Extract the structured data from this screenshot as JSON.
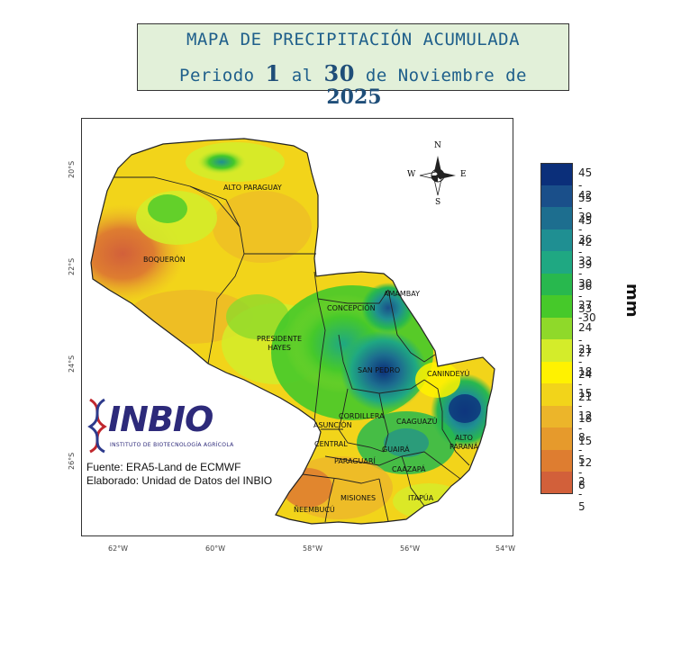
{
  "title": {
    "line1": "MAPA DE PRECIPITACIÓN ACUMULADA",
    "line2_prefix": "Periodo",
    "day_start": "1",
    "line2_mid": "al",
    "day_end": "30",
    "line2_suffix": "de Noviembre de",
    "year": "2025"
  },
  "compass": {
    "n": "N",
    "s": "S",
    "e": "E",
    "w": "W"
  },
  "lat_ticks": [
    "20°S",
    "22°S",
    "24°S",
    "26°S"
  ],
  "lon_ticks": [
    "62°W",
    "60°W",
    "58°W",
    "56°W",
    "54°W"
  ],
  "regions": {
    "alto_paraguay": "ALTO PARAGUAY",
    "boqueron": "BOQUERÓN",
    "presidente_hayes_1": "PRESIDENTE",
    "presidente_hayes_2": "HAYES",
    "concepcion": "CONCEPCIÓN",
    "amambay": "AMAMBAY",
    "san_pedro": "SAN PEDRO",
    "canindeyu": "CANINDEYÚ",
    "cordillera": "CORDILLERA",
    "asuncion": "ASUNCIÓN",
    "central": "CENTRAL",
    "caaguazu": "CAAGUAZÚ",
    "alto_parana_1": "ALTO",
    "alto_parana_2": "PARANÁ",
    "guaira": "GUAIRÁ",
    "paraguari": "PARAGUARÍ",
    "caazapa": "CAAZAPÁ",
    "misiones": "MISIONES",
    "neembucu": "ÑEEMBUCÚ",
    "itapua": "ITAPÚA"
  },
  "legend": {
    "unit": "mm",
    "classes": [
      {
        "label": "45 - 55",
        "color": "#0b2f7a"
      },
      {
        "label": "42 - 45",
        "color": "#1a4f8a"
      },
      {
        "label": "39 - 42",
        "color": "#1d6e8f"
      },
      {
        "label": "36 - 39",
        "color": "#1f8f92"
      },
      {
        "label": "33 - 36",
        "color": "#1fa882"
      },
      {
        "label": "30 - 33",
        "color": "#28b84e"
      },
      {
        "label": "27 -30",
        "color": "#46c92a"
      },
      {
        "label": "24 - 27",
        "color": "#8fd92a"
      },
      {
        "label": "21 - 24",
        "color": "#d4ec2a"
      },
      {
        "label": "18 - 21",
        "color": "#fff200"
      },
      {
        "label": "15 - 18",
        "color": "#f2d41a"
      },
      {
        "label": "12 - 15",
        "color": "#ecb52a"
      },
      {
        "label": "8 - 12",
        "color": "#e69a2c"
      },
      {
        "label": "5 - 8",
        "color": "#de7d30"
      },
      {
        "label": "2 - 5",
        "color": "#d2603a"
      }
    ]
  },
  "logo": {
    "name": "INBIO",
    "subtitle": "INSTITUTO DE BIOTECNOLOGÍA AGRÍCOLA"
  },
  "credits": {
    "source": "Fuente: ERA5-Land de ECMWF",
    "author": "Elaborado: Unidad de Datos del INBIO"
  }
}
